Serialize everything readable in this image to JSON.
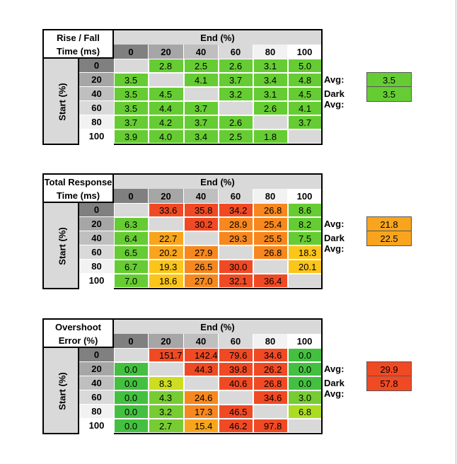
{
  "chart_data": [
    {
      "type": "table",
      "title_lines": [
        "Rise / Fall",
        "Time (ms)"
      ],
      "xlabel": "End (%)",
      "ylabel": "Start (%)",
      "columns": [
        "0",
        "20",
        "40",
        "60",
        "80",
        "100"
      ],
      "rows": [
        "0",
        "20",
        "40",
        "60",
        "80",
        "100"
      ],
      "values": [
        [
          null,
          "2.8",
          "2.5",
          "2.6",
          "3.1",
          "5.0"
        ],
        [
          "3.5",
          null,
          "4.1",
          "3.7",
          "3.4",
          "4.8"
        ],
        [
          "3.5",
          "4.5",
          null,
          "3.2",
          "3.1",
          "4.5"
        ],
        [
          "3.5",
          "4.4",
          "3.7",
          null,
          "2.6",
          "4.1"
        ],
        [
          "3.7",
          "4.2",
          "3.7",
          "2.6",
          null,
          "3.7"
        ],
        [
          "3.9",
          "4.0",
          "3.4",
          "2.5",
          "1.8",
          null
        ]
      ],
      "colors": [
        [
          "#d9d9d9",
          "#66cc33",
          "#66cc33",
          "#66cc33",
          "#66cc33",
          "#66cc33"
        ],
        [
          "#66cc33",
          "#d9d9d9",
          "#66cc33",
          "#66cc33",
          "#66cc33",
          "#66cc33"
        ],
        [
          "#66cc33",
          "#66cc33",
          "#d9d9d9",
          "#66cc33",
          "#66cc33",
          "#66cc33"
        ],
        [
          "#66cc33",
          "#66cc33",
          "#66cc33",
          "#d9d9d9",
          "#66cc33",
          "#66cc33"
        ],
        [
          "#66cc33",
          "#66cc33",
          "#66cc33",
          "#66cc33",
          "#d9d9d9",
          "#66cc33"
        ],
        [
          "#66cc33",
          "#66cc33",
          "#66cc33",
          "#66cc33",
          "#66cc33",
          "#d9d9d9"
        ]
      ],
      "avg_label": "Avg:",
      "avg": "3.5",
      "avg_color": "#66cc33",
      "dark_avg_label": "Dark Avg:",
      "dark_avg": "3.5",
      "dark_avg_color": "#66cc33"
    },
    {
      "type": "table",
      "title_lines": [
        "Total Response",
        "Time (ms)"
      ],
      "xlabel": "End (%)",
      "ylabel": "Start (%)",
      "columns": [
        "0",
        "20",
        "40",
        "60",
        "80",
        "100"
      ],
      "rows": [
        "0",
        "20",
        "40",
        "60",
        "80",
        "100"
      ],
      "values": [
        [
          null,
          "33.6",
          "35.8",
          "34.2",
          "26.8",
          "8.6"
        ],
        [
          "6.3",
          null,
          "30.2",
          "28.9",
          "25.4",
          "8.2"
        ],
        [
          "6.4",
          "22.7",
          null,
          "29.3",
          "25.5",
          "7.5"
        ],
        [
          "6.5",
          "20.2",
          "27.9",
          null,
          "26.8",
          "18.3"
        ],
        [
          "6.7",
          "19.3",
          "26.5",
          "30.0",
          null,
          "20.1"
        ],
        [
          "7.0",
          "18.6",
          "27.0",
          "32.1",
          "36.4",
          null
        ]
      ],
      "colors": [
        [
          "#d9d9d9",
          "#f04a25",
          "#f04a25",
          "#f04a25",
          "#f6881f",
          "#66cc33"
        ],
        [
          "#66cc33",
          "#d9d9d9",
          "#f04a25",
          "#f6881f",
          "#f6881f",
          "#66cc33"
        ],
        [
          "#66cc33",
          "#f8a51d",
          "#d9d9d9",
          "#f6881f",
          "#f6881f",
          "#66cc33"
        ],
        [
          "#66cc33",
          "#f8a51d",
          "#f6881f",
          "#d9d9d9",
          "#f6881f",
          "#fbc51a"
        ],
        [
          "#66cc33",
          "#fbc51a",
          "#f6881f",
          "#f04a25",
          "#d9d9d9",
          "#fbc51a"
        ],
        [
          "#66cc33",
          "#fbc51a",
          "#f6881f",
          "#f04a25",
          "#f04a25",
          "#d9d9d9"
        ]
      ],
      "avg_label": "Avg:",
      "avg": "21.8",
      "avg_color": "#f8a51d",
      "dark_avg_label": "Dark Avg:",
      "dark_avg": "22.5",
      "dark_avg_color": "#f8a51d"
    },
    {
      "type": "table",
      "title_lines": [
        "Overshoot",
        "Error (%)"
      ],
      "xlabel": "End (%)",
      "ylabel": "Start (%)",
      "columns": [
        "0",
        "20",
        "40",
        "60",
        "80",
        "100"
      ],
      "rows": [
        "0",
        "20",
        "40",
        "60",
        "80",
        "100"
      ],
      "values": [
        [
          null,
          "151.7",
          "142.4",
          "79.6",
          "34.6",
          "0.0"
        ],
        [
          "0.0",
          null,
          "44.3",
          "39.8",
          "26.2",
          "0.0"
        ],
        [
          "0.0",
          "8.3",
          null,
          "40.6",
          "26.8",
          "0.0"
        ],
        [
          "0.0",
          "4.3",
          "24.6",
          null,
          "34.6",
          "3.0"
        ],
        [
          "0.0",
          "3.2",
          "17.3",
          "46.5",
          null,
          "6.8"
        ],
        [
          "0.0",
          "2.7",
          "15.4",
          "46.2",
          "97.8",
          null
        ]
      ],
      "colors": [
        [
          "#d9d9d9",
          "#f04a25",
          "#f04a25",
          "#f04a25",
          "#f04a25",
          "#44c040"
        ],
        [
          "#44c040",
          "#d9d9d9",
          "#f04a25",
          "#f04a25",
          "#f04a25",
          "#44c040"
        ],
        [
          "#44c040",
          "#ccdd22",
          "#d9d9d9",
          "#f04a25",
          "#f04a25",
          "#44c040"
        ],
        [
          "#44c040",
          "#77cc33",
          "#f6881f",
          "#d9d9d9",
          "#f04a25",
          "#77cc33"
        ],
        [
          "#44c040",
          "#77cc33",
          "#f6881f",
          "#f04a25",
          "#d9d9d9",
          "#aadd22"
        ],
        [
          "#44c040",
          "#77cc33",
          "#f8a51d",
          "#f04a25",
          "#f04a25",
          "#d9d9d9"
        ]
      ],
      "avg_label": "Avg:",
      "avg": "29.9",
      "avg_color": "#f04a25",
      "dark_avg_label": "Dark Avg:",
      "dark_avg": "57.8",
      "dark_avg_color": "#f04a25"
    }
  ],
  "colors": {
    "col_header_fills": [
      "#808080",
      "#a6a6a6",
      "#bfbfbf",
      "#d9d9d9",
      "#f2f2f2",
      "#ffffff"
    ]
  }
}
